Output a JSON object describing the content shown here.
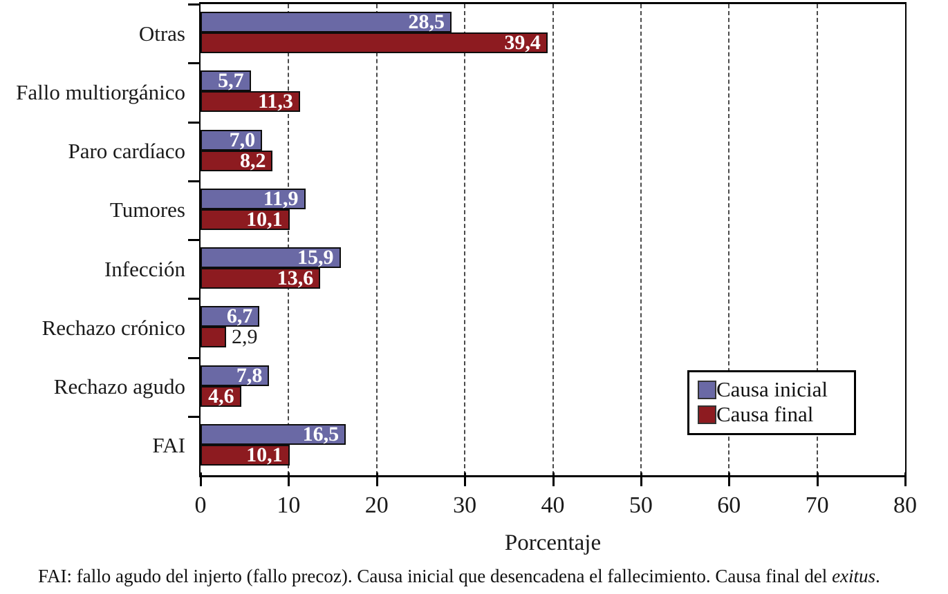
{
  "chart_data": {
    "type": "bar",
    "orientation": "horizontal",
    "xlabel": "Porcentaje",
    "xlim": [
      0,
      80
    ],
    "x_ticks": [
      0,
      10,
      20,
      30,
      40,
      50,
      60,
      70,
      80
    ],
    "x_tick_labels": [
      "0",
      "10",
      "20",
      "30",
      "40",
      "50",
      "60",
      "70",
      "80"
    ],
    "grid": "vertical-dashed-every-10",
    "legend_position": "right-lower-inside",
    "categories": [
      "Otras",
      "Fallo multiorgánico",
      "Paro cardíaco",
      "Tumores",
      "Infección",
      "Rechazo crónico",
      "Rechazo agudo",
      "FAI"
    ],
    "series": [
      {
        "name": "Causa inicial",
        "color": "#6a69a5",
        "values": [
          28.5,
          5.7,
          7.0,
          11.9,
          15.9,
          6.7,
          7.8,
          16.5
        ],
        "labels": [
          "28,5",
          "5,7",
          "7,0",
          "11,9",
          "15,9",
          "6,7",
          "7,8",
          "16,5"
        ],
        "label_inside": [
          true,
          true,
          true,
          true,
          true,
          true,
          true,
          true
        ]
      },
      {
        "name": "Causa final",
        "color": "#8d1b20",
        "values": [
          39.4,
          11.3,
          8.2,
          10.1,
          13.6,
          2.9,
          4.6,
          10.1
        ],
        "labels": [
          "39,4",
          "11,3",
          "8,2",
          "10,1",
          "13,6",
          "2,9",
          "4,6",
          "10,1"
        ],
        "label_inside": [
          true,
          true,
          true,
          true,
          true,
          false,
          true,
          true
        ]
      }
    ]
  },
  "legend": {
    "items": [
      {
        "label": "Causa inicial",
        "color": "#6a69a5"
      },
      {
        "label": "Causa final",
        "color": "#8d1b20"
      }
    ]
  },
  "footnote": {
    "prefix": "FAI: fallo agudo del injerto (fallo precoz). Causa inicial que desencadena el fallecimiento. Causa final del ",
    "italic": "exitus",
    "suffix": "."
  }
}
